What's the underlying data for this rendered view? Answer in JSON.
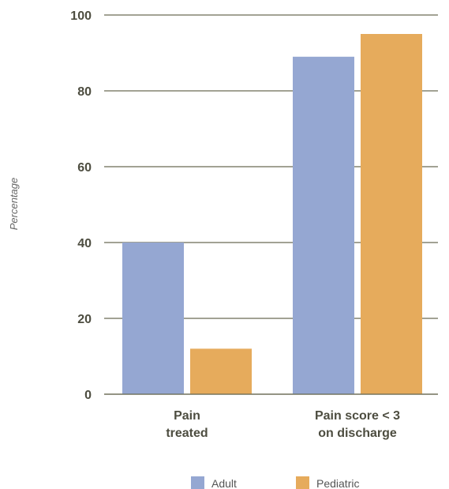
{
  "chart_data": {
    "type": "bar",
    "categories": [
      [
        "Pain",
        "treated"
      ],
      [
        "Pain score < 3",
        "on discharge"
      ]
    ],
    "series": [
      {
        "name": "Adult",
        "color": "#95a7d2",
        "values": [
          40,
          89
        ]
      },
      {
        "name": "Pediatric",
        "color": "#e6ab5c",
        "values": [
          12,
          95
        ]
      }
    ],
    "ylabel": "Percentage",
    "ylim": [
      0,
      100
    ],
    "yticks": [
      0,
      20,
      40,
      60,
      80,
      100
    ],
    "grid": true,
    "legend_position": "bottom"
  }
}
